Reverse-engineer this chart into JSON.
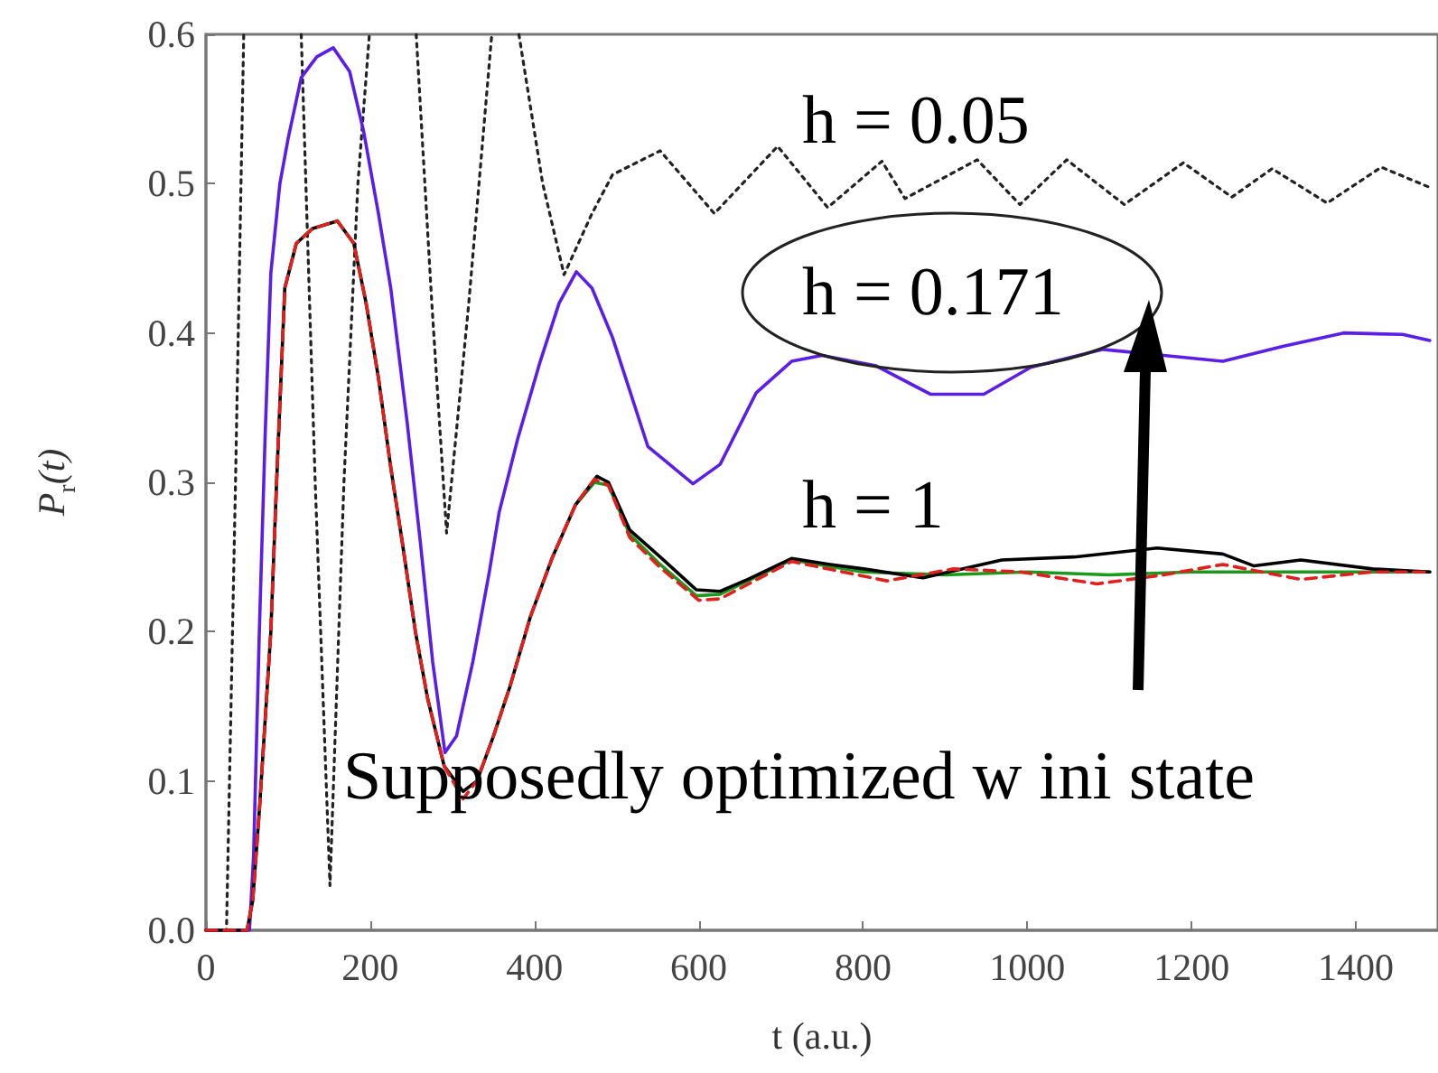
{
  "chart_data": {
    "type": "line",
    "xlabel": "t (a.u.)",
    "ylabel": "P$_{r}$(t)",
    "marker": "none",
    "xlim": [
      0,
      1500
    ],
    "ylim": [
      0,
      0.6
    ],
    "xticks": [
      0,
      200,
      400,
      600,
      800,
      1000,
      1200,
      1400
    ],
    "yticks": [
      {
        "value": 0,
        "label": "0.0"
      },
      0.1,
      0.2,
      0.3,
      0.4,
      0.5,
      0.6
    ],
    "annotations": [
      "h = 0.05",
      "h = 0.171",
      "h = 1",
      "Supposedly optimized w ini state"
    ],
    "series": [
      {
        "color": "#222222",
        "line_style": "dotted",
        "x": [
          0,
          25,
          36,
          46,
          80,
          116,
          133,
          151,
          168,
          185,
          199,
          230,
          256,
          275,
          293,
          320,
          348,
          365,
          381,
          410,
          436,
          470,
          495,
          553,
          619,
          696,
          757,
          823,
          851,
          939,
          991,
          1048,
          1118,
          1190,
          1249,
          1298,
          1365,
          1431,
          1492
        ],
        "values": [
          0,
          0,
          0.3,
          0.6,
          null,
          0.6,
          0.3,
          0.03,
          0.3,
          0.5,
          0.6,
          null,
          0.6,
          0.42,
          0.266,
          0.42,
          0.6,
          null,
          0.6,
          0.5,
          0.439,
          0.48,
          0.506,
          0.522,
          0.48,
          0.525,
          0.484,
          0.515,
          0.49,
          0.516,
          0.486,
          0.516,
          0.486,
          0.514,
          0.491,
          0.51,
          0.487,
          0.511,
          0.497
        ]
      },
      {
        "color": "#5b1ee8",
        "line_style": "solid",
        "x": [
          0,
          53,
          58,
          65,
          72,
          79,
          90,
          100,
          116,
          135,
          155,
          175,
          192,
          210,
          225,
          245,
          261,
          276,
          291,
          305,
          325,
          345,
          357,
          380,
          407,
          430,
          451,
          470,
          495,
          538,
          593,
          626,
          670,
          713,
          750,
          816,
          882,
          947,
          1004,
          1092,
          1166,
          1238,
          1311,
          1385,
          1457,
          1490
        ],
        "values": [
          0,
          0,
          0.05,
          0.2,
          0.33,
          0.44,
          0.5,
          0.53,
          0.571,
          0.585,
          0.591,
          0.575,
          0.535,
          0.48,
          0.43,
          0.34,
          0.26,
          0.18,
          0.119,
          0.13,
          0.18,
          0.24,
          0.28,
          0.33,
          0.381,
          0.42,
          0.441,
          0.43,
          0.397,
          0.324,
          0.299,
          0.312,
          0.36,
          0.381,
          0.385,
          0.378,
          0.359,
          0.359,
          0.377,
          0.389,
          0.385,
          0.381,
          0.391,
          0.4,
          0.399,
          0.395
        ]
      },
      {
        "color": "#1a9a1a",
        "line_style": "solid",
        "x": [
          450,
          473,
          490,
          516,
          553,
          597,
          626,
          713,
          800,
          900,
          1000,
          1100,
          1200,
          1300,
          1490
        ],
        "values": [
          0.285,
          0.3,
          0.298,
          0.265,
          0.245,
          0.224,
          0.225,
          0.248,
          0.24,
          0.238,
          0.24,
          0.238,
          0.24,
          0.24,
          0.24
        ]
      },
      {
        "color": "#000000",
        "line_style": "solid",
        "x": [
          0,
          50,
          57,
          65,
          72,
          79,
          86,
          96,
          110,
          130,
          160,
          180,
          195,
          210,
          225,
          239,
          255,
          270,
          290,
          313,
          330,
          350,
          370,
          395,
          422,
          450,
          476,
          490,
          516,
          553,
          597,
          626,
          660,
          713,
          760,
          801,
          873,
          969,
          1057,
          1158,
          1238,
          1276,
          1333,
          1420,
          1490
        ],
        "values": [
          0,
          0,
          0.02,
          0.08,
          0.14,
          0.2,
          0.3,
          0.43,
          0.46,
          0.47,
          0.475,
          0.46,
          0.42,
          0.37,
          0.31,
          0.26,
          0.2,
          0.155,
          0.11,
          0.093,
          0.1,
          0.13,
          0.163,
          0.21,
          0.25,
          0.285,
          0.304,
          0.3,
          0.268,
          0.25,
          0.228,
          0.227,
          0.235,
          0.249,
          0.245,
          0.242,
          0.236,
          0.248,
          0.25,
          0.256,
          0.252,
          0.244,
          0.248,
          0.242,
          0.24
        ]
      },
      {
        "color": "#e0201c",
        "line_style": "dashed",
        "x": [
          0,
          50,
          57,
          65,
          72,
          79,
          86,
          96,
          110,
          130,
          160,
          180,
          195,
          210,
          225,
          239,
          255,
          270,
          290,
          313,
          330,
          350,
          370,
          395,
          422,
          450,
          473,
          490,
          516,
          553,
          600,
          626,
          713,
          829,
          910,
          991,
          1085,
          1166,
          1238,
          1333,
          1420,
          1490
        ],
        "values": [
          0,
          0,
          0.02,
          0.08,
          0.14,
          0.2,
          0.3,
          0.43,
          0.46,
          0.47,
          0.475,
          0.46,
          0.42,
          0.37,
          0.31,
          0.26,
          0.2,
          0.155,
          0.11,
          0.088,
          0.1,
          0.13,
          0.163,
          0.21,
          0.25,
          0.285,
          0.302,
          0.298,
          0.263,
          0.243,
          0.221,
          0.222,
          0.247,
          0.234,
          0.242,
          0.24,
          0.232,
          0.238,
          0.245,
          0.235,
          0.24,
          0.24
        ]
      }
    ]
  }
}
